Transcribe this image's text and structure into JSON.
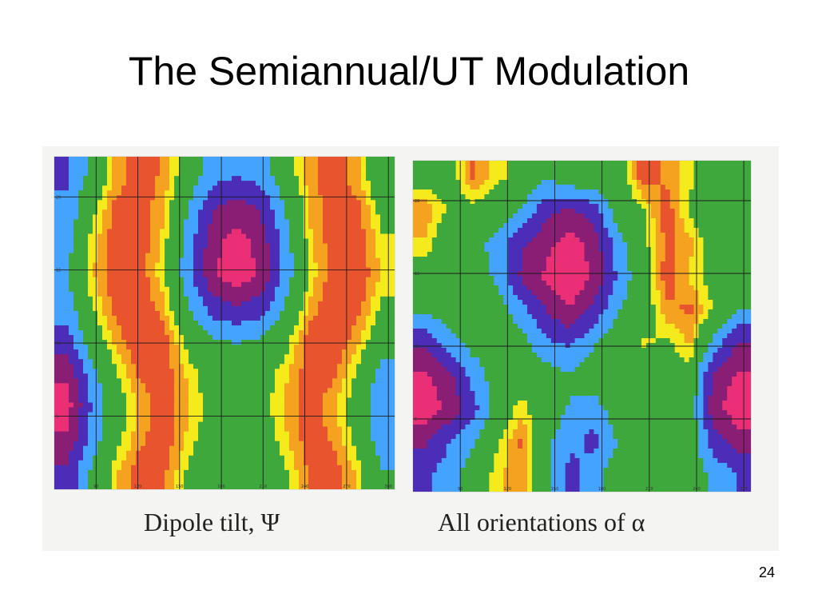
{
  "slide": {
    "title": "The Semiannual/UT Modulation",
    "page_number": "24"
  },
  "colors": {
    "scale": [
      "#3ea83c",
      "#44a3ff",
      "#4b2db8",
      "#8a1e74",
      "#ea2f76",
      "#f4ea1c",
      "#f4a21f",
      "#e8542e"
    ],
    "scale_order": "green, light-blue, dark-blue, purple, magenta (negative side); green, yellow, orange, red (positive side)",
    "grid": "#1a1a1a",
    "panel_background": "#f4f4f2"
  },
  "chart_data": [
    {
      "type": "heatmap",
      "caption": "Dipole tilt, Ψ",
      "grid": true,
      "x_ticks": [
        "90",
        "120",
        "150",
        "180",
        "210",
        "240",
        "270",
        "300"
      ],
      "y_ticks": [
        "5",
        "10",
        "15",
        "20"
      ],
      "rows": 10,
      "cols": 14,
      "values": [
        [
          -1,
          -0.2,
          0.6,
          0.9,
          0.7,
          0.1,
          -0.6,
          -0.8,
          -0.6,
          0.1,
          0.7,
          0.9,
          0.6,
          -0.2
        ],
        [
          -0.8,
          0.2,
          0.8,
          0.9,
          0.6,
          -0.3,
          -1.4,
          -1.7,
          -1.4,
          -0.3,
          0.6,
          0.9,
          0.8,
          0.2
        ],
        [
          -0.6,
          0.4,
          0.9,
          0.9,
          0.5,
          -0.6,
          -1.8,
          -2.4,
          -1.8,
          -0.6,
          0.5,
          0.9,
          0.9,
          0.4
        ],
        [
          -0.4,
          0.5,
          0.95,
          0.9,
          0.4,
          -0.7,
          -2,
          -2.6,
          -2,
          -0.7,
          0.4,
          0.9,
          0.95,
          0.5
        ],
        [
          -0.6,
          0.3,
          0.85,
          1,
          0.6,
          -0.3,
          -1.2,
          -1.5,
          -1.2,
          -0.3,
          0.6,
          1,
          0.85,
          0.3
        ],
        [
          -1.2,
          0,
          0.6,
          1,
          0.9,
          0.2,
          -0.3,
          -0.4,
          -0.3,
          0.2,
          0.9,
          1,
          0.6,
          0
        ],
        [
          -2,
          -0.6,
          0.3,
          0.8,
          0.9,
          0.5,
          0.1,
          0,
          0.1,
          0.5,
          0.9,
          0.8,
          0.3,
          -0.6
        ],
        [
          -2.4,
          -0.9,
          0.1,
          0.6,
          0.9,
          0.6,
          0.2,
          0.1,
          0.2,
          0.6,
          0.9,
          0.6,
          0.1,
          -0.9
        ],
        [
          -2,
          -0.7,
          0.2,
          0.7,
          0.9,
          0.5,
          0.1,
          0,
          0.1,
          0.5,
          0.9,
          0.7,
          0.2,
          -0.7
        ],
        [
          -1.3,
          -0.3,
          0.5,
          0.9,
          0.8,
          0.3,
          -0.2,
          -0.3,
          -0.2,
          0.3,
          0.8,
          0.9,
          0.5,
          -0.3
        ]
      ]
    },
    {
      "type": "heatmap",
      "caption": "All orientations of α",
      "grid": true,
      "x_ticks": [
        "90",
        "120",
        "150",
        "180",
        "210",
        "240",
        "270"
      ],
      "y_ticks": [
        "5",
        "10",
        "15",
        "20"
      ],
      "rows": 10,
      "cols": 14,
      "values": [
        [
          0.2,
          0.1,
          0.8,
          0.4,
          0.3,
          -0.3,
          0.1,
          0.2,
          0,
          0.9,
          0.7,
          0.4,
          0.1,
          0
        ],
        [
          0.7,
          0.3,
          0.2,
          0.1,
          -0.4,
          -1.3,
          -1.6,
          -1.2,
          0,
          0.3,
          0.9,
          0.3,
          0,
          0.1
        ],
        [
          0.5,
          0,
          -0.1,
          -0.6,
          -1.4,
          -1.9,
          -2.4,
          -1.8,
          -0.6,
          0.2,
          0.8,
          0.6,
          0.1,
          0
        ],
        [
          0.1,
          0.3,
          0.1,
          -0.5,
          -1.6,
          -2.2,
          -2.7,
          -2,
          -0.8,
          0.1,
          0.9,
          0.5,
          0.2,
          0
        ],
        [
          -0.2,
          0,
          0.2,
          0,
          -0.7,
          -1.5,
          -2.1,
          -1.3,
          -0.4,
          0,
          0.7,
          0.8,
          0.3,
          -0.3
        ],
        [
          -1.4,
          -0.6,
          -0.1,
          -0.2,
          -0.1,
          -0.8,
          -1,
          -0.4,
          0,
          0.4,
          0.3,
          0.6,
          -0.6,
          -1.5
        ],
        [
          -2.2,
          -1.7,
          -0.7,
          0,
          0.1,
          0,
          -0.3,
          0,
          0.1,
          0,
          0,
          0.2,
          -1.7,
          -2.2
        ],
        [
          -2.5,
          -1.9,
          -1.1,
          0,
          0.5,
          0,
          -0.4,
          -0.6,
          0,
          0,
          -0.2,
          0,
          -1.9,
          -2.5
        ],
        [
          -1.6,
          -0.9,
          -0.4,
          0.3,
          0.8,
          -0.2,
          -0.7,
          -1.1,
          -0.3,
          0,
          0.2,
          0.1,
          -1.2,
          -1.8
        ],
        [
          -1,
          -0.6,
          0,
          0.5,
          0.7,
          0,
          -1.2,
          -0.5,
          0,
          0.1,
          0,
          0,
          -0.5,
          -0.9
        ]
      ]
    }
  ]
}
